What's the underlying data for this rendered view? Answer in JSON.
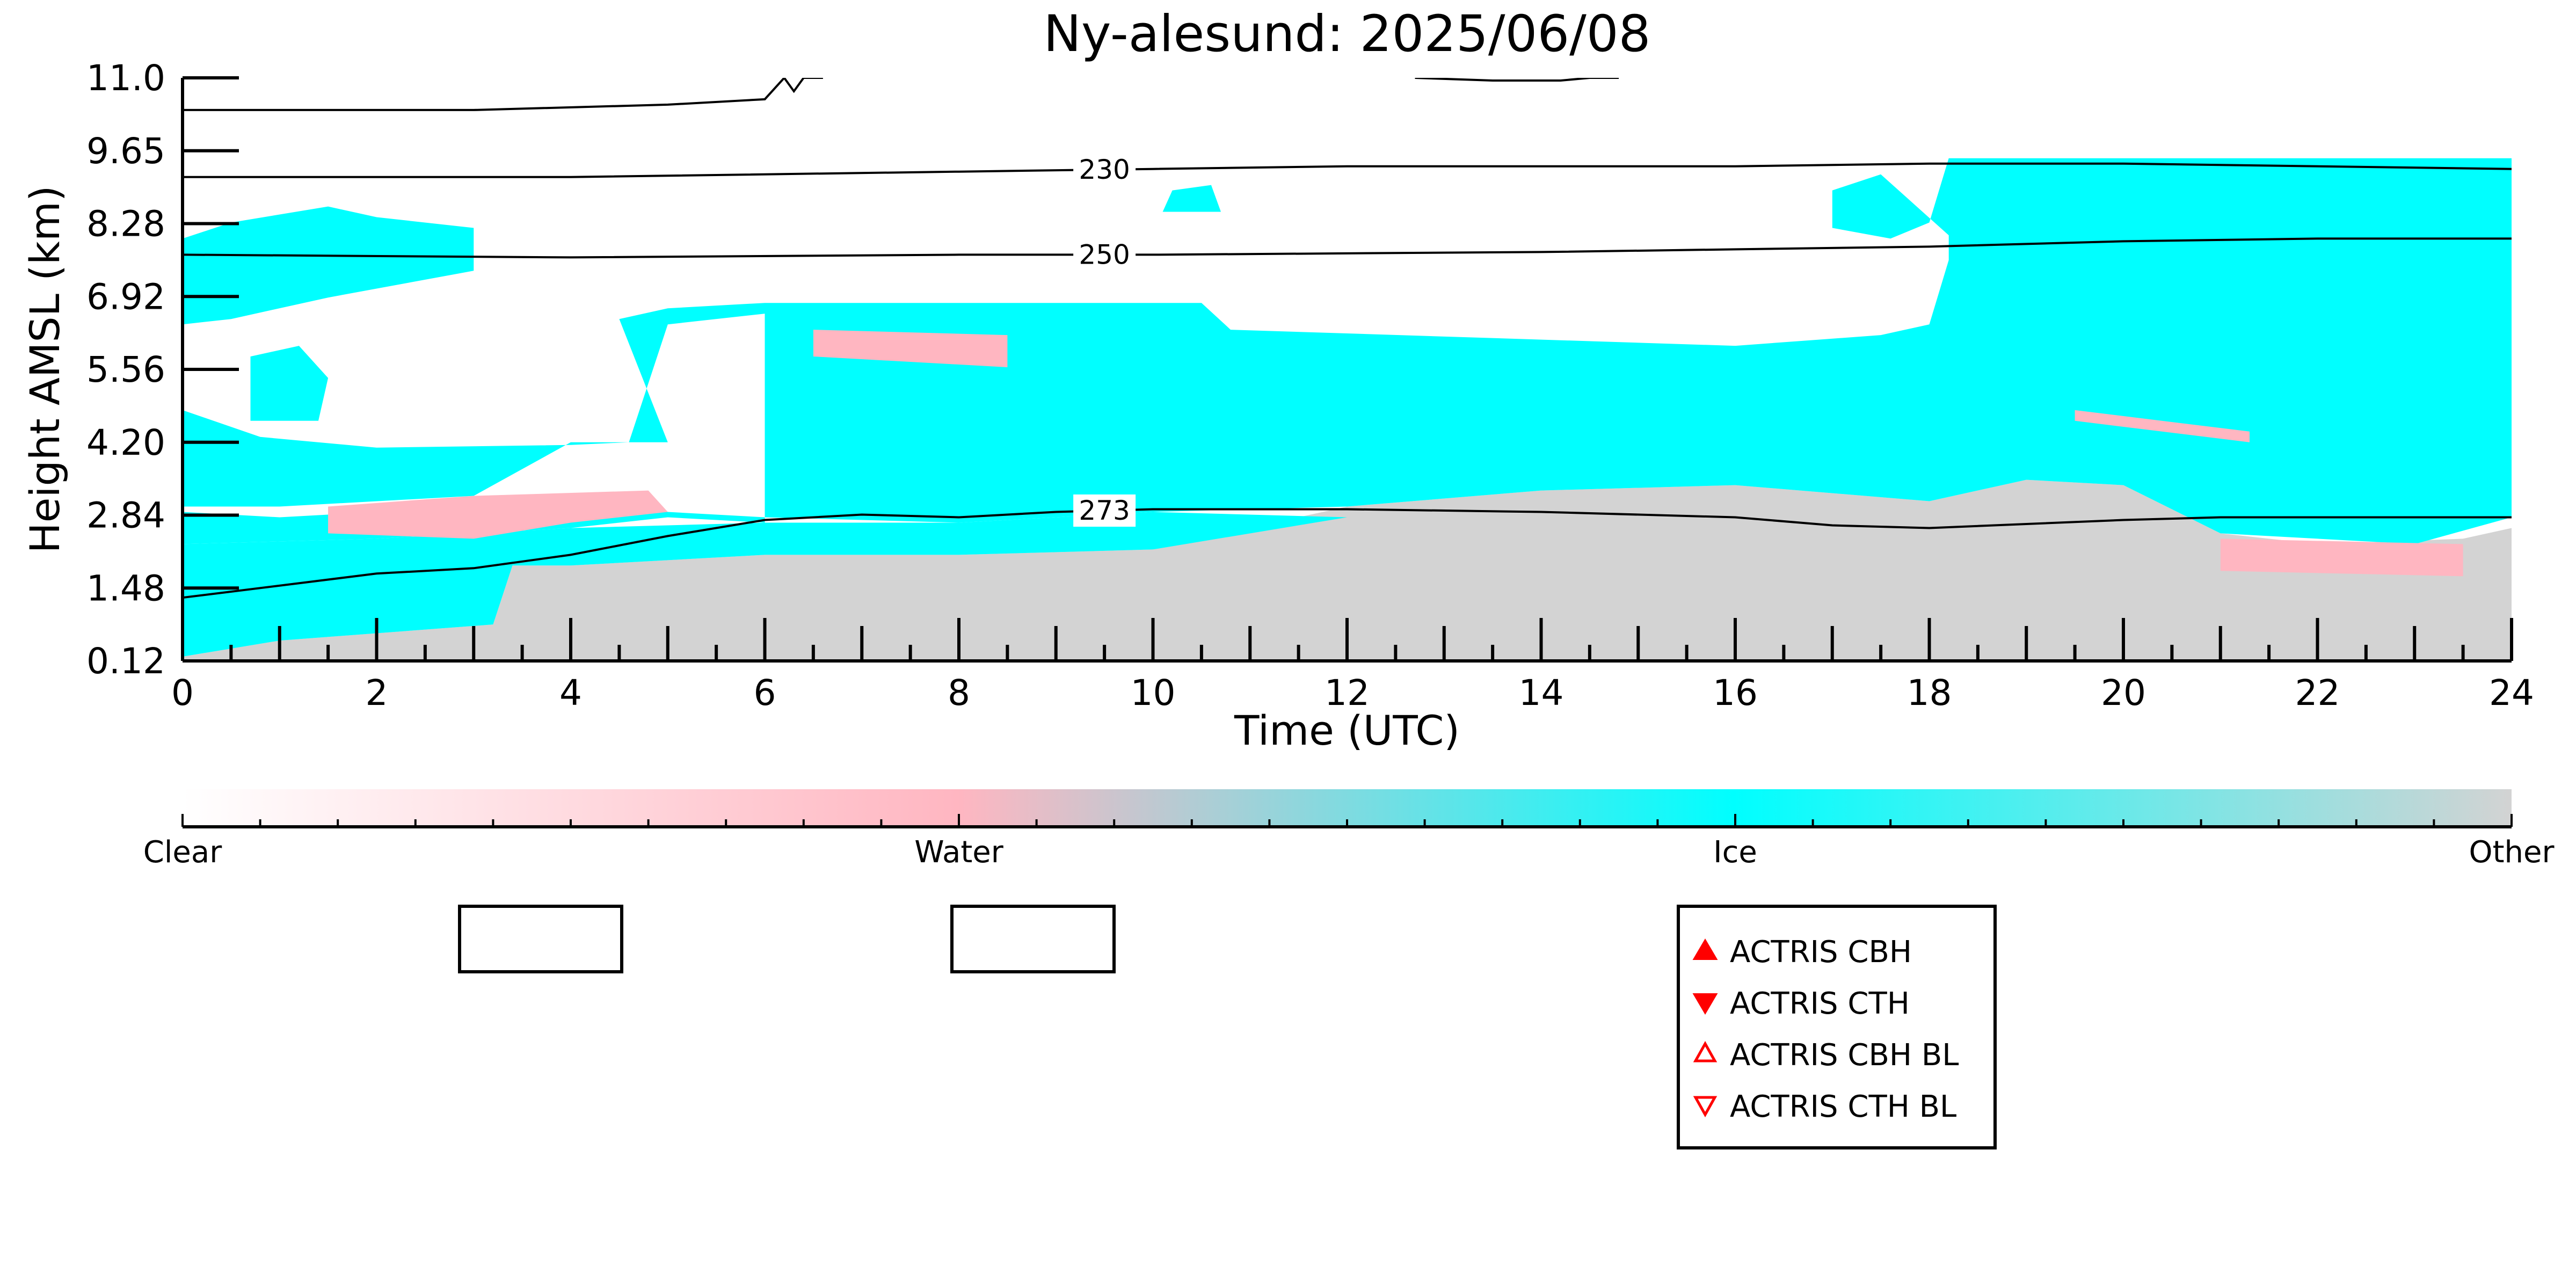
{
  "chart_data": {
    "type": "heatmap",
    "title": "Ny-alesund: 2025/06/08",
    "xlabel": "Time (UTC)",
    "ylabel": "Height AMSL (km)",
    "xlim": [
      0,
      24
    ],
    "ylim": [
      0.12,
      11.0
    ],
    "x_ticks": [
      "0",
      "2",
      "4",
      "6",
      "8",
      "10",
      "12",
      "14",
      "16",
      "18",
      "20",
      "22",
      "24"
    ],
    "y_ticks": [
      "0.12",
      "1.48",
      "2.84",
      "4.20",
      "5.56",
      "6.92",
      "8.28",
      "9.65",
      "11.0"
    ],
    "colorbar": {
      "categories": [
        "Clear",
        "Water",
        "Ice",
        "Other"
      ],
      "colors": [
        "#ffffff",
        "#ffb6c1",
        "#00ffff",
        "#d3d3d3"
      ]
    },
    "regions": [
      {
        "name": "Other",
        "color": "#d3d3d3",
        "points": [
          [
            0,
            0.12
          ],
          [
            24,
            0.12
          ],
          [
            24,
            2.6
          ],
          [
            23.5,
            2.4
          ],
          [
            22,
            2.3
          ],
          [
            21,
            2.5
          ],
          [
            20,
            3.4
          ],
          [
            19,
            3.5
          ],
          [
            18,
            3.1
          ],
          [
            16,
            3.4
          ],
          [
            14,
            3.3
          ],
          [
            12,
            3.0
          ],
          [
            10,
            2.2
          ],
          [
            8,
            2.1
          ],
          [
            6,
            2.1
          ],
          [
            4,
            1.9
          ],
          [
            3.4,
            1.9
          ],
          [
            3.2,
            0.8
          ],
          [
            1,
            0.5
          ],
          [
            0,
            0.2
          ]
        ]
      },
      {
        "name": "Ice",
        "color": "#00ffff",
        "points": [
          [
            0,
            0.2
          ],
          [
            1,
            0.5
          ],
          [
            3.2,
            0.8
          ],
          [
            3.4,
            1.9
          ],
          [
            4,
            1.9
          ],
          [
            6,
            2.1
          ],
          [
            8,
            2.1
          ],
          [
            10,
            2.2
          ],
          [
            12,
            2.8
          ],
          [
            10,
            2.9
          ],
          [
            8,
            2.7
          ],
          [
            6,
            2.7
          ],
          [
            4,
            2.6
          ],
          [
            2,
            2.4
          ],
          [
            0,
            2.3
          ]
        ]
      },
      {
        "name": "Ice",
        "color": "#00ffff",
        "points": [
          [
            0,
            2.3
          ],
          [
            2,
            2.4
          ],
          [
            4,
            2.6
          ],
          [
            5,
            2.8
          ],
          [
            6,
            2.7
          ],
          [
            6,
            6.8
          ],
          [
            10.5,
            6.8
          ],
          [
            10.8,
            6.3
          ],
          [
            16,
            6.0
          ],
          [
            17.5,
            6.2
          ],
          [
            18,
            6.4
          ],
          [
            18.2,
            7.6
          ],
          [
            18.2,
            9.3
          ],
          [
            20,
            9.4
          ],
          [
            22,
            9.4
          ],
          [
            24,
            9.3
          ],
          [
            24,
            2.8
          ],
          [
            23,
            2.3
          ],
          [
            21,
            2.5
          ],
          [
            20,
            3.4
          ],
          [
            19,
            3.5
          ],
          [
            18,
            3.1
          ],
          [
            16,
            3.4
          ],
          [
            14,
            3.3
          ],
          [
            12,
            3.0
          ],
          [
            10,
            2.9
          ],
          [
            9,
            2.8
          ],
          [
            8,
            2.7
          ],
          [
            6,
            2.8
          ],
          [
            5,
            2.9
          ],
          [
            4,
            3.0
          ],
          [
            3,
            3.0
          ],
          [
            1,
            2.8
          ],
          [
            0,
            2.9
          ]
        ]
      },
      {
        "name": "Ice",
        "color": "#00ffff",
        "points": [
          [
            0,
            3.0
          ],
          [
            1,
            3.0
          ],
          [
            3,
            3.2
          ],
          [
            4,
            4.2
          ],
          [
            5,
            4.2
          ],
          [
            4.5,
            6.5
          ],
          [
            5,
            6.7
          ],
          [
            6,
            6.8
          ],
          [
            6,
            6.6
          ],
          [
            5,
            6.4
          ],
          [
            4.6,
            4.2
          ],
          [
            4,
            4.15
          ],
          [
            2,
            4.1
          ],
          [
            0.8,
            4.3
          ],
          [
            0,
            4.8
          ]
        ]
      },
      {
        "name": "Ice",
        "color": "#00ffff",
        "points": [
          [
            0,
            6.4
          ],
          [
            0.5,
            6.5
          ],
          [
            1.5,
            6.9
          ],
          [
            3,
            7.4
          ],
          [
            3,
            8.2
          ],
          [
            2,
            8.4
          ],
          [
            1.5,
            8.6
          ],
          [
            0.5,
            8.3
          ],
          [
            0,
            8.0
          ]
        ]
      },
      {
        "name": "Ice",
        "color": "#00ffff",
        "points": [
          [
            0.7,
            4.6
          ],
          [
            1.4,
            4.6
          ],
          [
            1.5,
            5.4
          ],
          [
            1.2,
            6.0
          ],
          [
            0.7,
            5.8
          ]
        ]
      },
      {
        "name": "Ice",
        "color": "#00ffff",
        "points": [
          [
            10.1,
            8.5
          ],
          [
            10.7,
            8.5
          ],
          [
            10.6,
            9.0
          ],
          [
            10.2,
            8.9
          ]
        ]
      },
      {
        "name": "Ice",
        "color": "#00ffff",
        "points": [
          [
            17,
            8.2
          ],
          [
            17.6,
            8.0
          ],
          [
            18,
            8.3
          ],
          [
            18.2,
            9.5
          ],
          [
            24,
            9.5
          ],
          [
            24,
            7.2
          ],
          [
            20.7,
            7.2
          ],
          [
            20.7,
            6.4
          ],
          [
            18.6,
            6.5
          ],
          [
            18.3,
            7.9
          ],
          [
            17.5,
            9.2
          ],
          [
            17,
            8.9
          ]
        ]
      },
      {
        "name": "Water",
        "color": "#ffb6c1",
        "points": [
          [
            1.5,
            2.5
          ],
          [
            3,
            2.4
          ],
          [
            4,
            2.7
          ],
          [
            5,
            2.9
          ],
          [
            4.8,
            3.3
          ],
          [
            3,
            3.2
          ],
          [
            1.5,
            3.0
          ]
        ]
      },
      {
        "name": "Water",
        "color": "#ffb6c1",
        "points": [
          [
            19.5,
            4.6
          ],
          [
            21.3,
            4.2
          ],
          [
            21.3,
            4.4
          ],
          [
            19.5,
            4.8
          ]
        ]
      },
      {
        "name": "Water",
        "color": "#ffb6c1",
        "points": [
          [
            21,
            1.8
          ],
          [
            23.5,
            1.7
          ],
          [
            23.5,
            2.3
          ],
          [
            21,
            2.4
          ]
        ]
      },
      {
        "name": "Water",
        "color": "#ffb6c1",
        "points": [
          [
            6.5,
            5.8
          ],
          [
            8.5,
            5.6
          ],
          [
            8.5,
            6.2
          ],
          [
            6.5,
            6.3
          ]
        ]
      }
    ],
    "isotherms": [
      {
        "label": "",
        "label_x": null,
        "points": [
          [
            0,
            10.4
          ],
          [
            3,
            10.4
          ],
          [
            5,
            10.5
          ],
          [
            6,
            10.6
          ],
          [
            6.2,
            11.0
          ],
          [
            6.3,
            10.75
          ],
          [
            6.4,
            11.0
          ],
          [
            6.6,
            11.0
          ]
        ]
      },
      {
        "label": "",
        "label_x": null,
        "points": [
          [
            12.7,
            11.0
          ],
          [
            13.5,
            10.95
          ],
          [
            14.2,
            10.95
          ],
          [
            14.5,
            11.0
          ],
          [
            14.8,
            11.0
          ]
        ]
      },
      {
        "label": "230",
        "label_x": 9.5,
        "points": [
          [
            0,
            9.15
          ],
          [
            4,
            9.15
          ],
          [
            8,
            9.25
          ],
          [
            10,
            9.3
          ],
          [
            12,
            9.35
          ],
          [
            16,
            9.35
          ],
          [
            18,
            9.4
          ],
          [
            20,
            9.4
          ],
          [
            24,
            9.3
          ]
        ]
      },
      {
        "label": "250",
        "label_x": 9.5,
        "points": [
          [
            0,
            7.7
          ],
          [
            4,
            7.65
          ],
          [
            8,
            7.7
          ],
          [
            10,
            7.7
          ],
          [
            14,
            7.75
          ],
          [
            16,
            7.8
          ],
          [
            18,
            7.85
          ],
          [
            20,
            7.95
          ],
          [
            22,
            8.0
          ],
          [
            24,
            8.0
          ]
        ]
      },
      {
        "label": "273",
        "label_x": 9.5,
        "points": [
          [
            0,
            1.3
          ],
          [
            2,
            1.75
          ],
          [
            3,
            1.85
          ],
          [
            4,
            2.1
          ],
          [
            5,
            2.45
          ],
          [
            6,
            2.75
          ],
          [
            7,
            2.85
          ],
          [
            8,
            2.8
          ],
          [
            9,
            2.9
          ],
          [
            10,
            2.95
          ],
          [
            12,
            2.95
          ],
          [
            14,
            2.9
          ],
          [
            16,
            2.8
          ],
          [
            17,
            2.65
          ],
          [
            18,
            2.6
          ],
          [
            20,
            2.75
          ],
          [
            21,
            2.8
          ],
          [
            22,
            2.8
          ],
          [
            24,
            2.8
          ]
        ]
      }
    ],
    "legend": {
      "placement": "bottom-center",
      "entries": [
        {
          "label": "ACTRIS CBH",
          "marker": "triangle-up",
          "filled": true,
          "color": "#ff0000"
        },
        {
          "label": "ACTRIS CTH",
          "marker": "triangle-down",
          "filled": true,
          "color": "#ff0000"
        },
        {
          "label": "ACTRIS CBH BL",
          "marker": "triangle-up",
          "filled": false,
          "color": "#ff0000"
        },
        {
          "label": "ACTRIS CTH BL",
          "marker": "triangle-down",
          "filled": false,
          "color": "#ff0000"
        }
      ]
    },
    "grid": false
  }
}
